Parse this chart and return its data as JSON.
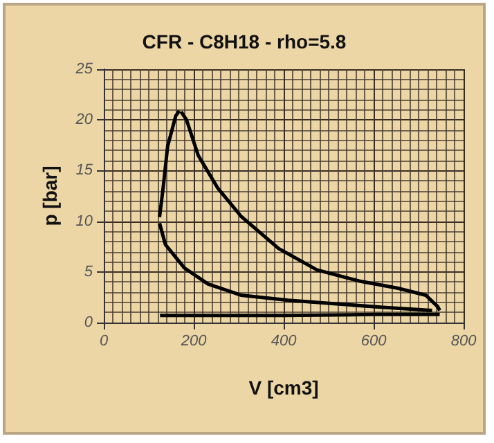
{
  "chart_data": {
    "type": "line",
    "title": "CFR - C8H18 - rho=5.8",
    "xlabel": "V [cm3]",
    "ylabel": "p [bar]",
    "xlim": [
      0,
      800
    ],
    "xticks": [
      0,
      200,
      400,
      600,
      800
    ],
    "ylim": [
      0,
      25
    ],
    "yticks": [
      0,
      5,
      10,
      15,
      20,
      25
    ],
    "grid": true,
    "marker": "none",
    "line_style": "solid",
    "series": [
      {
        "color": "#000000",
        "x": [
          124,
          137,
          179,
          232,
          305,
          410,
          621,
          730
        ],
        "values": [
          9.8,
          7.7,
          5.4,
          3.8,
          2.7,
          2.2,
          1.5,
          1.2
        ]
      },
      {
        "color": "#000000",
        "x": [
          124,
          132,
          142,
          160,
          168
        ],
        "values": [
          10.4,
          13.3,
          17.4,
          20.4,
          20.9
        ]
      },
      {
        "color": "#000000",
        "x": [
          172,
          184,
          210,
          253,
          305,
          389,
          474,
          568,
          653,
          716,
          742,
          747
        ],
        "values": [
          20.8,
          20.0,
          16.5,
          13.3,
          10.5,
          7.3,
          5.2,
          4.1,
          3.4,
          2.7,
          1.6,
          1.2
        ]
      },
      {
        "color": "#000000",
        "x": [
          125,
          200,
          400,
          600,
          747
        ],
        "values": [
          0.7,
          0.7,
          0.7,
          0.8,
          0.8
        ]
      }
    ]
  }
}
